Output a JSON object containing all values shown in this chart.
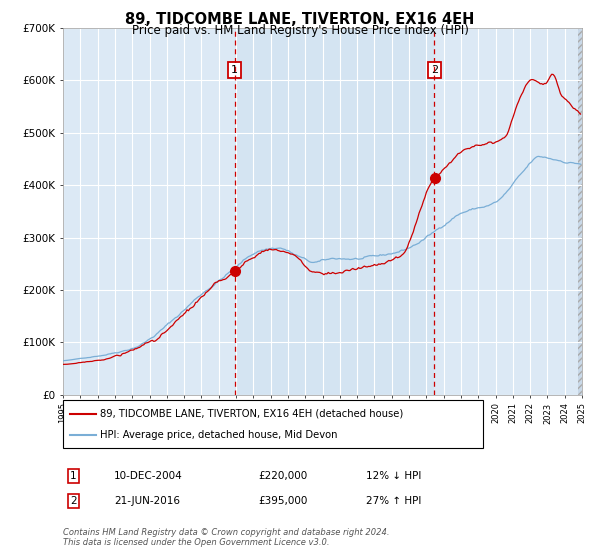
{
  "title": "89, TIDCOMBE LANE, TIVERTON, EX16 4EH",
  "subtitle": "Price paid vs. HM Land Registry's House Price Index (HPI)",
  "line1_label": "89, TIDCOMBE LANE, TIVERTON, EX16 4EH (detached house)",
  "line2_label": "HPI: Average price, detached house, Mid Devon",
  "purchase1_date": "10-DEC-2004",
  "purchase1_price": 220000,
  "purchase1_pct": "12% ↓ HPI",
  "purchase2_date": "21-JUN-2016",
  "purchase2_price": 395000,
  "purchase2_pct": "27% ↑ HPI",
  "purchase1_year": 2004.92,
  "purchase2_year": 2016.46,
  "xmin": 1995,
  "xmax": 2025,
  "ymin": 0,
  "ymax": 700000,
  "yticks": [
    0,
    100000,
    200000,
    300000,
    400000,
    500000,
    600000,
    700000
  ],
  "background_color": "#ffffff",
  "plot_bg_color": "#dce9f5",
  "grid_color": "#ffffff",
  "line1_color": "#cc0000",
  "line2_color": "#7aaed6",
  "footer_text": "Contains HM Land Registry data © Crown copyright and database right 2024.\nThis data is licensed under the Open Government Licence v3.0."
}
